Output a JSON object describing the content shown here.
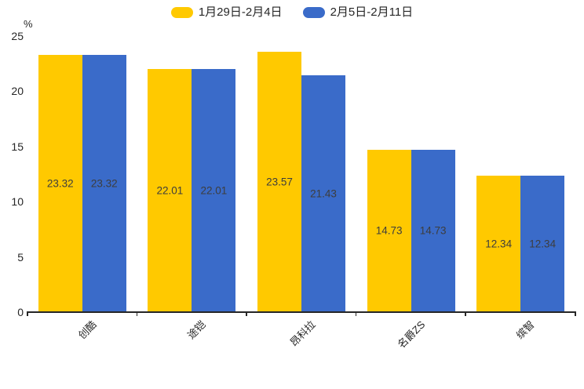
{
  "chart_data": {
    "type": "bar",
    "title": "",
    "unit_label": "%",
    "categories": [
      "创酷",
      "途铠",
      "昂科拉",
      "名爵ZS",
      "缤智"
    ],
    "series": [
      {
        "name": "1月29日-2月4日",
        "color": "#FFC900",
        "values": [
          23.32,
          22.01,
          23.57,
          14.73,
          12.34
        ]
      },
      {
        "name": "2月5日-2月11日",
        "color": "#3A6BC9",
        "values": [
          23.32,
          22.01,
          21.43,
          14.73,
          12.34
        ]
      }
    ],
    "value_labels": [
      "23.32",
      "22.01",
      "23.57",
      "14.73",
      "12.34",
      "23.32",
      "22.01",
      "21.43",
      "14.73",
      "12.34"
    ],
    "ylim": [
      0,
      25
    ],
    "yticks": [
      "0",
      "5",
      "10",
      "15",
      "20",
      "25"
    ],
    "legend_position": "top-center",
    "grid": false,
    "colors": {
      "axis": "#262626",
      "tick_label": "#262626",
      "value_label": "#3d3d3d",
      "legend_text": "#262626",
      "background": "#ffffff"
    }
  }
}
